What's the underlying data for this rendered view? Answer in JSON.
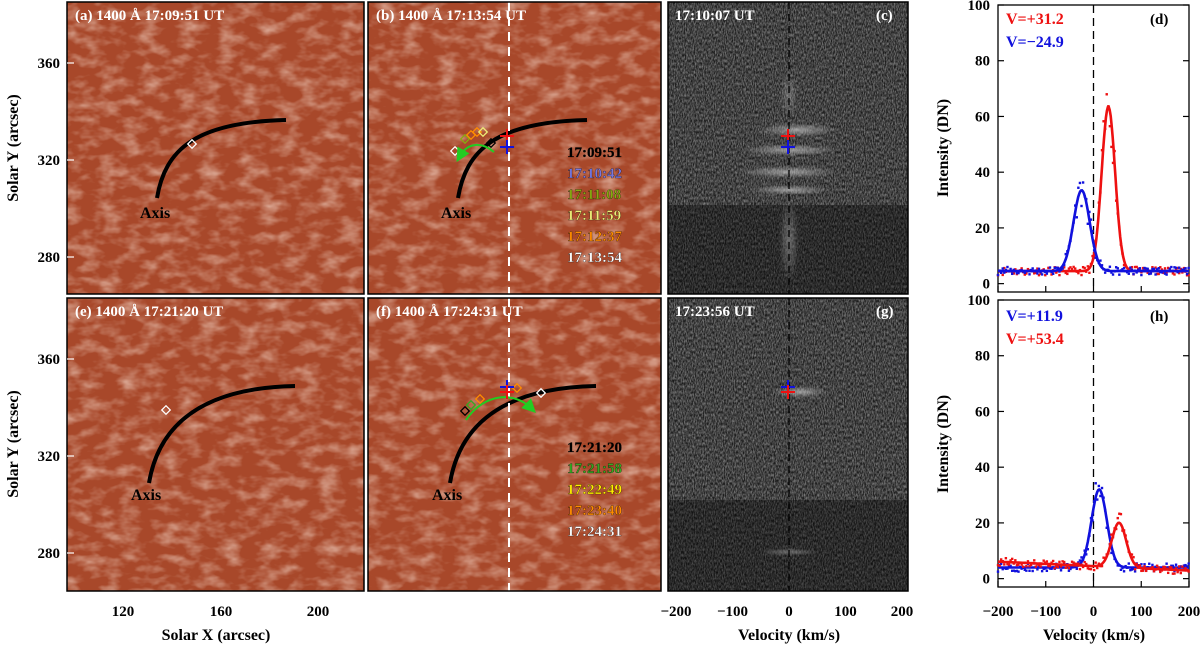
{
  "colors": {
    "red": "#ee1111",
    "blue": "#1111dd",
    "map_bg": "#a8482a",
    "spec_bg": "#1c1c1c",
    "slit": "#ffffff",
    "axis_curve": "#000000",
    "arrow": "#22cc22"
  },
  "axes": {
    "solar_y": "Solar Y (arcsec)",
    "solar_x": "Solar X (arcsec)",
    "velocity": "Velocity (km/s)",
    "intensity": "Intensity (DN)"
  },
  "ticks": {
    "y_map": [
      "360",
      "320",
      "280"
    ],
    "x_map": [
      "120",
      "160",
      "200"
    ],
    "vel": [
      "-200",
      "-100",
      "0",
      "100",
      "200"
    ],
    "int": [
      "0",
      "20",
      "40",
      "60",
      "80",
      "100"
    ]
  },
  "panels": {
    "a": {
      "title": "(a) 1400 Å  17:09:51 UT",
      "axis_label": "Axis"
    },
    "b": {
      "title": "(b) 1400 Å  17:13:54 UT",
      "axis_label": "Axis",
      "times": [
        {
          "t": "17:09:51",
          "color": "#000000"
        },
        {
          "t": "17:10:42",
          "color": "#7777dd"
        },
        {
          "t": "17:11:08",
          "color": "#88aa11"
        },
        {
          "t": "17:11:59",
          "color": "#eeee77"
        },
        {
          "t": "17:12:37",
          "color": "#ff8c00"
        },
        {
          "t": "17:13:54",
          "color": "#ffffff"
        }
      ]
    },
    "c": {
      "time": "17:10:07 UT",
      "label": "(c)"
    },
    "d": {
      "label": "(d)",
      "v_red": "V=+31.2",
      "v_blue": "V=−24.9"
    },
    "e": {
      "title": "(e) 1400 Å  17:21:20 UT",
      "axis_label": "Axis"
    },
    "f": {
      "title": "(f) 1400 Å  17:24:31 UT",
      "axis_label": "Axis",
      "times": [
        {
          "t": "17:21:20",
          "color": "#000000"
        },
        {
          "t": "17:21:58",
          "color": "#33aa22"
        },
        {
          "t": "17:22:49",
          "color": "#ffee00"
        },
        {
          "t": "17:23:40",
          "color": "#ff8c00"
        },
        {
          "t": "17:24:31",
          "color": "#ffffff"
        }
      ]
    },
    "g": {
      "time": "17:23:56 UT",
      "label": "(g)"
    },
    "h": {
      "label": "(h)",
      "v_blue": "V=+11.9",
      "v_red": "V=+53.4"
    }
  },
  "chart_data": [
    {
      "panel": "d",
      "type": "line",
      "xlabel": "Velocity (km/s)",
      "ylabel": "Intensity (DN)",
      "xlim": [
        -200,
        200
      ],
      "ylim": [
        -3,
        100
      ],
      "series": [
        {
          "name": "V=+31.2",
          "color": "red",
          "center": 31.2,
          "amplitude": 59,
          "width": 14,
          "background": 4.5
        },
        {
          "name": "V=−24.9",
          "color": "blue",
          "center": -24.9,
          "amplitude": 29,
          "width": 17,
          "background": 4.5
        }
      ]
    },
    {
      "panel": "h",
      "type": "line",
      "xlabel": "Velocity (km/s)",
      "ylabel": "Intensity (DN)",
      "xlim": [
        -200,
        200
      ],
      "ylim": [
        -3,
        100
      ],
      "series": [
        {
          "name": "V=+11.9",
          "color": "blue",
          "center": 11.9,
          "amplitude": 28,
          "width": 16,
          "background": 4.0
        },
        {
          "name": "V=+53.4",
          "color": "red",
          "center": 53.4,
          "amplitude": 16,
          "width": 15,
          "background": 4.5,
          "slope": -0.008
        }
      ]
    }
  ]
}
